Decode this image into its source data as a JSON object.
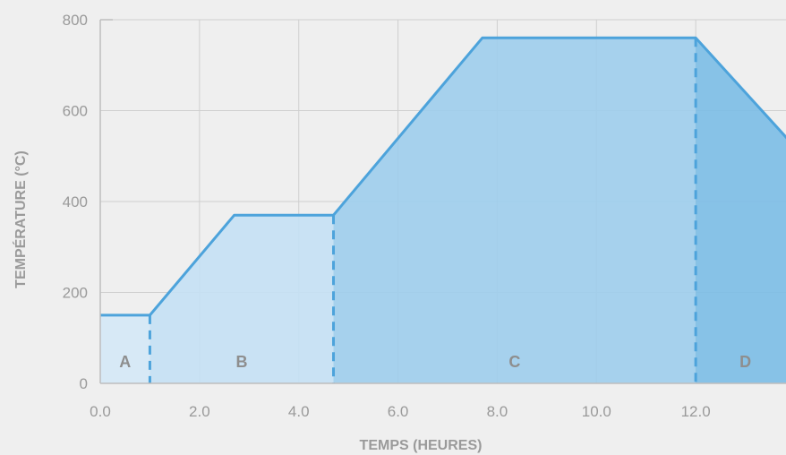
{
  "chart_data": {
    "type": "area",
    "xlabel": "TEMPS (HEURES)",
    "ylabel": "TEMPÉRATURE (°C)",
    "xlim": [
      0,
      14
    ],
    "ylim": [
      0,
      800
    ],
    "x_ticks": [
      "0.0",
      "2.0",
      "4.0",
      "6.0",
      "8.0",
      "10.0",
      "12.0"
    ],
    "y_ticks": [
      "0",
      "200",
      "400",
      "600",
      "800"
    ],
    "grid": true,
    "series": [
      {
        "x": [
          0,
          1.0,
          2.7,
          4.7,
          7.7,
          12.0,
          14.0
        ],
        "y": [
          150,
          150,
          370,
          370,
          760,
          760,
          520
        ]
      }
    ],
    "zones": [
      {
        "label": "A",
        "x_start": 0,
        "x_end": 1.0,
        "color": "#d4e8f6"
      },
      {
        "label": "B",
        "x_start": 1.0,
        "x_end": 4.7,
        "color": "#c4e0f4"
      },
      {
        "label": "C",
        "x_start": 4.7,
        "x_end": 12.0,
        "color": "#9dcdec"
      },
      {
        "label": "D",
        "x_start": 12.0,
        "x_end": 14.0,
        "color": "#7bbde6"
      }
    ],
    "colors": {
      "line": "#4da3db",
      "grid": "#cfcfcf",
      "axis": "#bdbdbd",
      "background": "#efefef"
    }
  }
}
